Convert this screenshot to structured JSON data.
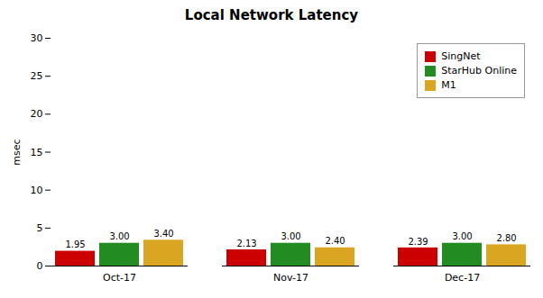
{
  "chart_data": {
    "type": "bar",
    "title": "Local Network Latency",
    "ylabel": "msec",
    "categories": [
      "Oct-17",
      "Nov-17",
      "Dec-17"
    ],
    "series": [
      {
        "name": "SingNet",
        "color": "#cc0000",
        "values": [
          1.95,
          2.13,
          2.39
        ],
        "value_labels": [
          "1.95",
          "2.13",
          "2.39"
        ]
      },
      {
        "name": "StarHub Online",
        "color": "#228B22",
        "values": [
          3.0,
          3.0,
          3.0
        ],
        "value_labels": [
          "3.00",
          "3.00",
          "3.00"
        ]
      },
      {
        "name": "M1",
        "color": "#DAA520",
        "values": [
          3.4,
          2.4,
          2.8
        ],
        "value_labels": [
          "3.40",
          "2.40",
          "2.80"
        ]
      }
    ],
    "ylim": [
      0,
      30
    ],
    "yticks": [
      0,
      5,
      10,
      15,
      20,
      25,
      30
    ],
    "grid": false,
    "legend": "upper right",
    "data_labels": true
  }
}
